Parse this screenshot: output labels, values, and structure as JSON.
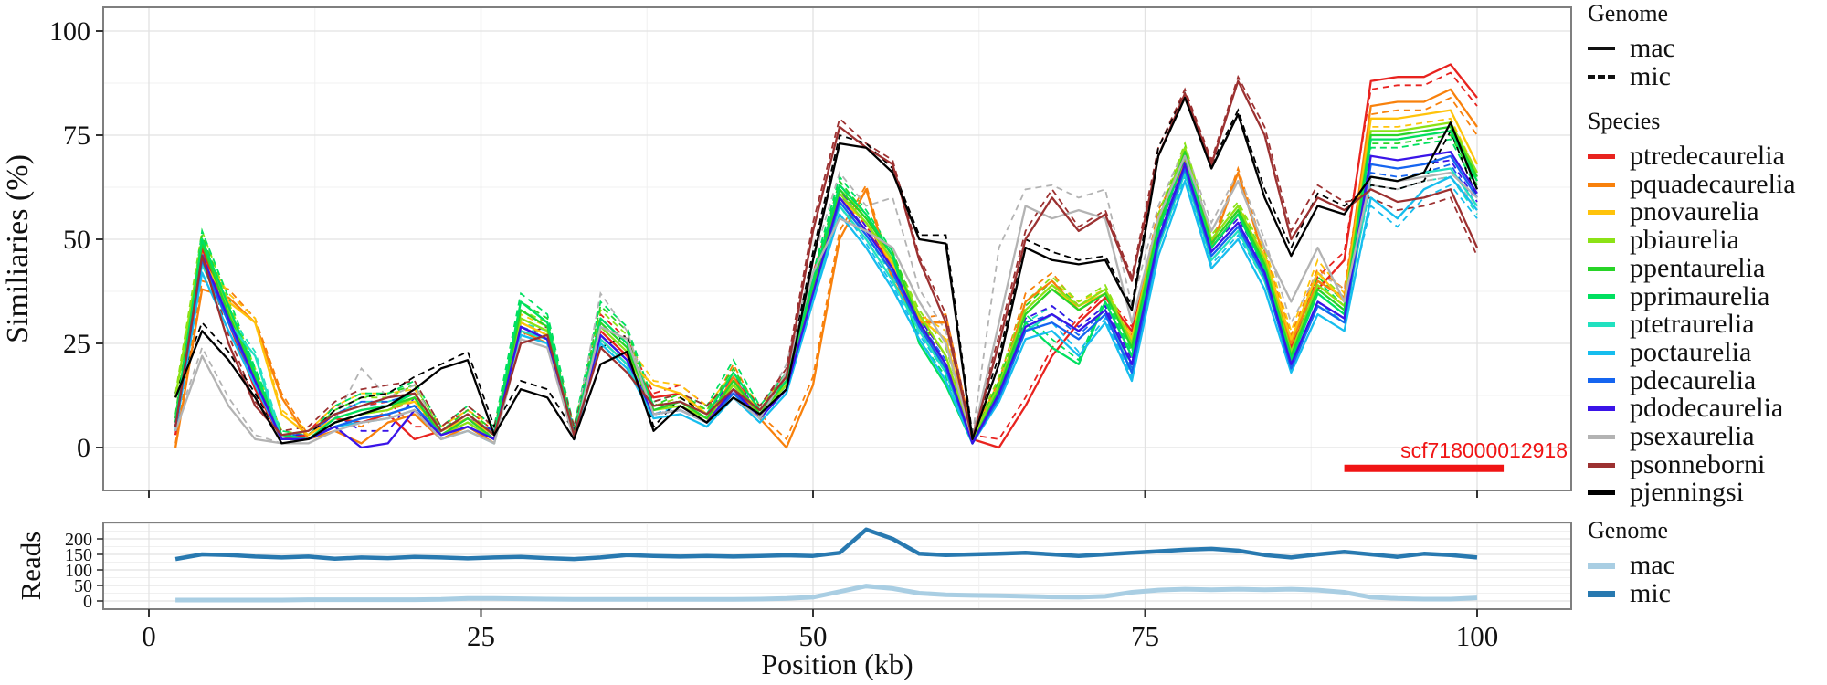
{
  "colors": {
    "background": "#ffffff",
    "grid_major": "#e2e2e2",
    "grid_minor": "#f0f0f0",
    "panel_border": "#7f7f7f",
    "tick": "#333333",
    "text": "#111111",
    "annotation_red": "#f01414",
    "reads_mac": "#a9cee3",
    "reads_mic": "#2879b0"
  },
  "legends": {
    "genome_main": {
      "title": "Genome",
      "items": [
        {
          "label": "mac",
          "style": "solid"
        },
        {
          "label": "mic",
          "style": "dashed"
        }
      ]
    },
    "species": {
      "title": "Species",
      "items": [
        {
          "label": "ptredecaurelia",
          "color": "#e8231f"
        },
        {
          "label": "pquadecaurelia",
          "color": "#f8810c"
        },
        {
          "label": "pnovaurelia",
          "color": "#ffc30b"
        },
        {
          "label": "pbiaurelia",
          "color": "#8ce216"
        },
        {
          "label": "ppentaurelia",
          "color": "#28d428"
        },
        {
          "label": "pprimaurelia",
          "color": "#00e060"
        },
        {
          "label": "ptetraurelia",
          "color": "#21e1c0"
        },
        {
          "label": "poctaurelia",
          "color": "#16bdee"
        },
        {
          "label": "pdecaurelia",
          "color": "#1565f0"
        },
        {
          "label": "pdodecaurelia",
          "color": "#3a14e8"
        },
        {
          "label": "psexaurelia",
          "color": "#b3b3b3"
        },
        {
          "label": "psonneborni",
          "color": "#9c3131"
        },
        {
          "label": "pjenningsi",
          "color": "#000000"
        }
      ]
    },
    "genome_reads": {
      "title": "Genome",
      "items": [
        {
          "label": "mac",
          "color": "#a9cee3"
        },
        {
          "label": "mic",
          "color": "#2879b0"
        }
      ]
    }
  },
  "chart_data": [
    {
      "type": "line",
      "title": "",
      "xlabel": "Position (kb)",
      "ylabel": "Similiaries (%)",
      "xlim": [
        -3.5,
        107
      ],
      "ylim": [
        -10,
        105
      ],
      "xticks": [
        0,
        25,
        50,
        75,
        100
      ],
      "yticks": [
        0,
        25,
        50,
        75,
        100
      ],
      "minor_grid": true,
      "legend_position": "right",
      "annotation": {
        "text": "scf718000012918",
        "x_start": 90,
        "x_end": 102,
        "y": -5,
        "color": "#f01414"
      },
      "x": [
        2,
        4,
        6,
        8,
        10,
        12,
        14,
        16,
        18,
        20,
        22,
        24,
        26,
        28,
        30,
        32,
        34,
        36,
        38,
        40,
        42,
        44,
        46,
        48,
        50,
        52,
        54,
        56,
        58,
        60,
        62,
        64,
        66,
        68,
        70,
        72,
        74,
        76,
        78,
        80,
        82,
        84,
        86,
        88,
        90,
        92,
        94,
        96,
        98,
        100
      ],
      "mic_offset": [
        1,
        2,
        2,
        1,
        1,
        1,
        3,
        4,
        3,
        3,
        1,
        2,
        2,
        2,
        2,
        2,
        4,
        4,
        1,
        2,
        2,
        3,
        1,
        2,
        2,
        2,
        1,
        1,
        1,
        2,
        1,
        2,
        2,
        2,
        1,
        1,
        1,
        2,
        1,
        1,
        1,
        2,
        2,
        3,
        2,
        -2,
        -2,
        -2,
        -2,
        -2
      ],
      "series": [
        {
          "name": "ptredecaurelia",
          "color": "#e8231f",
          "mac": [
            3,
            48,
            30,
            14,
            2,
            3,
            7,
            6,
            8,
            2,
            4,
            7,
            2,
            29,
            26,
            3,
            28,
            22,
            12,
            13,
            8,
            13,
            9,
            16,
            40,
            60,
            52,
            44,
            30,
            20,
            2,
            0,
            10,
            22,
            30,
            36,
            28,
            52,
            70,
            48,
            56,
            44,
            24,
            38,
            45,
            88,
            89,
            89,
            92,
            84
          ]
        },
        {
          "name": "pquadecaurelia",
          "color": "#f8810c",
          "mac": [
            0,
            38,
            36,
            30,
            12,
            2,
            4,
            1,
            6,
            8,
            2,
            5,
            1,
            28,
            25,
            2,
            26,
            20,
            8,
            9,
            6,
            17,
            7,
            0,
            15,
            50,
            62,
            40,
            30,
            30,
            2,
            14,
            35,
            40,
            33,
            37,
            26,
            55,
            68,
            48,
            66,
            45,
            25,
            40,
            36,
            82,
            83,
            83,
            86,
            77
          ]
        },
        {
          "name": "pnovaurelia",
          "color": "#ffc30b",
          "mac": [
            6,
            45,
            35,
            30,
            8,
            3,
            7,
            9,
            10,
            11,
            4,
            7,
            3,
            30,
            27,
            3,
            27,
            21,
            15,
            13,
            8,
            15,
            9,
            15,
            37,
            60,
            54,
            44,
            31,
            26,
            2,
            14,
            32,
            38,
            34,
            37,
            26,
            54,
            71,
            49,
            57,
            46,
            26,
            42,
            35,
            79,
            79,
            80,
            81,
            68
          ]
        },
        {
          "name": "pbiaurelia",
          "color": "#8ce216",
          "mac": [
            12,
            50,
            33,
            18,
            3,
            2,
            6,
            8,
            9,
            12,
            3,
            6,
            2,
            31,
            28,
            3,
            29,
            23,
            9,
            10,
            7,
            15,
            8,
            15,
            38,
            61,
            54,
            45,
            32,
            22,
            2,
            15,
            33,
            39,
            34,
            38,
            25,
            54,
            72,
            50,
            58,
            45,
            23,
            39,
            34,
            76,
            76,
            77,
            78,
            66
          ]
        },
        {
          "name": "ppentaurelia",
          "color": "#28d428",
          "mac": [
            7,
            49,
            32,
            17,
            2,
            2,
            6,
            8,
            10,
            12,
            3,
            7,
            2,
            33,
            29,
            2,
            30,
            24,
            9,
            11,
            7,
            16,
            8,
            16,
            39,
            62,
            55,
            46,
            30,
            18,
            1,
            14,
            32,
            38,
            33,
            37,
            24,
            53,
            71,
            49,
            57,
            44,
            22,
            38,
            33,
            75,
            75,
            76,
            77,
            65
          ]
        },
        {
          "name": "pprimaurelia",
          "color": "#00e060",
          "mac": [
            6,
            50,
            34,
            18,
            3,
            2,
            7,
            9,
            10,
            13,
            4,
            8,
            3,
            35,
            30,
            3,
            31,
            25,
            10,
            11,
            8,
            18,
            9,
            16,
            40,
            63,
            56,
            46,
            25,
            15,
            1,
            13,
            30,
            24,
            20,
            35,
            22,
            52,
            70,
            48,
            56,
            43,
            21,
            37,
            32,
            74,
            74,
            75,
            76,
            64
          ]
        },
        {
          "name": "ptetraurelia",
          "color": "#21e1c0",
          "mac": [
            5,
            44,
            30,
            22,
            2,
            2,
            5,
            7,
            8,
            10,
            3,
            5,
            2,
            28,
            26,
            2,
            26,
            20,
            8,
            9,
            6,
            13,
            7,
            14,
            36,
            58,
            50,
            40,
            28,
            18,
            1,
            12,
            28,
            32,
            28,
            33,
            18,
            48,
            66,
            45,
            52,
            40,
            20,
            34,
            30,
            65,
            64,
            66,
            67,
            58
          ]
        },
        {
          "name": "poctaurelia",
          "color": "#16bdee",
          "mac": [
            4,
            42,
            28,
            15,
            2,
            2,
            5,
            6,
            7,
            9,
            2,
            4,
            1,
            27,
            25,
            2,
            25,
            19,
            7,
            8,
            5,
            12,
            6,
            13,
            35,
            56,
            48,
            38,
            26,
            16,
            1,
            11,
            26,
            28,
            22,
            30,
            16,
            46,
            64,
            43,
            50,
            38,
            18,
            32,
            28,
            60,
            55,
            62,
            65,
            57
          ]
        },
        {
          "name": "pdecaurelia",
          "color": "#1565f0",
          "mac": [
            5,
            45,
            30,
            16,
            2,
            2,
            5,
            7,
            8,
            10,
            3,
            5,
            2,
            29,
            26,
            2,
            27,
            21,
            8,
            9,
            6,
            13,
            7,
            14,
            37,
            59,
            51,
            42,
            29,
            19,
            1,
            12,
            28,
            30,
            26,
            32,
            18,
            49,
            67,
            46,
            53,
            41,
            19,
            34,
            30,
            68,
            67,
            68,
            70,
            60
          ]
        },
        {
          "name": "pdodecaurelia",
          "color": "#3a14e8",
          "mac": [
            5,
            46,
            31,
            16,
            2,
            2,
            5,
            0,
            1,
            9,
            3,
            5,
            2,
            29,
            26,
            2,
            27,
            21,
            8,
            9,
            6,
            14,
            7,
            14,
            37,
            60,
            52,
            43,
            30,
            20,
            1,
            13,
            29,
            32,
            28,
            33,
            20,
            50,
            68,
            47,
            54,
            42,
            20,
            35,
            31,
            70,
            69,
            70,
            71,
            61
          ]
        },
        {
          "name": "psexaurelia",
          "color": "#b3b3b3",
          "mac": [
            4,
            22,
            10,
            2,
            1,
            1,
            4,
            6,
            7,
            9,
            2,
            4,
            1,
            26,
            24,
            2,
            29,
            26,
            8,
            9,
            6,
            12,
            7,
            18,
            42,
            55,
            52,
            48,
            35,
            25,
            2,
            30,
            58,
            55,
            57,
            55,
            30,
            55,
            70,
            52,
            64,
            48,
            35,
            48,
            35,
            65,
            64,
            65,
            66,
            60
          ],
          "mic": [
            5,
            24,
            12,
            3,
            1,
            2,
            7,
            19,
            12,
            15,
            3,
            6,
            2,
            27,
            25,
            3,
            37,
            28,
            9,
            10,
            7,
            14,
            8,
            20,
            45,
            66,
            58,
            60,
            38,
            28,
            3,
            48,
            62,
            63,
            60,
            62,
            34,
            58,
            72,
            54,
            66,
            50,
            30,
            42,
            38,
            63,
            62,
            64,
            65,
            58
          ]
        },
        {
          "name": "psonneborni",
          "color": "#9c3131",
          "mac": [
            5,
            46,
            25,
            10,
            3,
            4,
            8,
            10,
            12,
            13,
            4,
            8,
            3,
            25,
            27,
            3,
            24,
            18,
            10,
            11,
            8,
            14,
            9,
            17,
            52,
            77,
            72,
            68,
            45,
            30,
            2,
            25,
            50,
            60,
            52,
            56,
            40,
            70,
            85,
            68,
            88,
            75,
            50,
            60,
            57,
            62,
            59,
            60,
            62,
            48
          ]
        },
        {
          "name": "pjenningsi",
          "color": "#000000",
          "mac": [
            12,
            28,
            21,
            12,
            1,
            2,
            6,
            8,
            10,
            14,
            19,
            21,
            3,
            14,
            12,
            2,
            20,
            23,
            4,
            10,
            6,
            12,
            8,
            14,
            45,
            73,
            72,
            66,
            50,
            49,
            2,
            20,
            48,
            45,
            44,
            45,
            33,
            70,
            84,
            67,
            80,
            60,
            46,
            58,
            56,
            65,
            64,
            66,
            78,
            62
          ]
        }
      ]
    },
    {
      "type": "line",
      "title": "",
      "xlabel": "Position (kb)",
      "ylabel": "Reads",
      "ylim": [
        -25,
        250
      ],
      "yticks": [
        0,
        50,
        100,
        150,
        200
      ],
      "xticks": [
        0,
        25,
        50,
        75,
        100
      ],
      "x": [
        2,
        4,
        6,
        8,
        10,
        12,
        14,
        16,
        18,
        20,
        22,
        24,
        26,
        28,
        30,
        32,
        34,
        36,
        38,
        40,
        42,
        44,
        46,
        48,
        50,
        52,
        54,
        56,
        58,
        60,
        62,
        64,
        66,
        68,
        70,
        72,
        74,
        76,
        78,
        80,
        82,
        84,
        86,
        88,
        90,
        92,
        94,
        96,
        98,
        100
      ],
      "series": [
        {
          "name": "mac",
          "color": "#a9cee3",
          "values": [
            3,
            3,
            3,
            3,
            3,
            4,
            4,
            4,
            4,
            4,
            5,
            8,
            8,
            7,
            6,
            5,
            5,
            5,
            5,
            5,
            5,
            5,
            6,
            8,
            12,
            30,
            48,
            40,
            25,
            20,
            18,
            17,
            15,
            13,
            12,
            15,
            28,
            35,
            38,
            36,
            38,
            36,
            38,
            35,
            28,
            12,
            8,
            6,
            6,
            10
          ]
        },
        {
          "name": "mic",
          "color": "#2879b0",
          "values": [
            135,
            150,
            148,
            143,
            140,
            143,
            136,
            140,
            138,
            142,
            140,
            137,
            140,
            142,
            138,
            135,
            140,
            148,
            145,
            143,
            145,
            143,
            145,
            147,
            145,
            155,
            230,
            200,
            152,
            148,
            150,
            152,
            155,
            150,
            145,
            150,
            155,
            160,
            165,
            168,
            162,
            148,
            140,
            150,
            158,
            150,
            142,
            152,
            148,
            140
          ]
        }
      ]
    }
  ],
  "axis_tick_labels": {
    "main_y": [
      "0",
      "25",
      "50",
      "75",
      "100"
    ],
    "x": [
      "0",
      "25",
      "50",
      "75",
      "100"
    ],
    "reads_y": [
      "0",
      "50",
      "100",
      "150",
      "200"
    ]
  }
}
